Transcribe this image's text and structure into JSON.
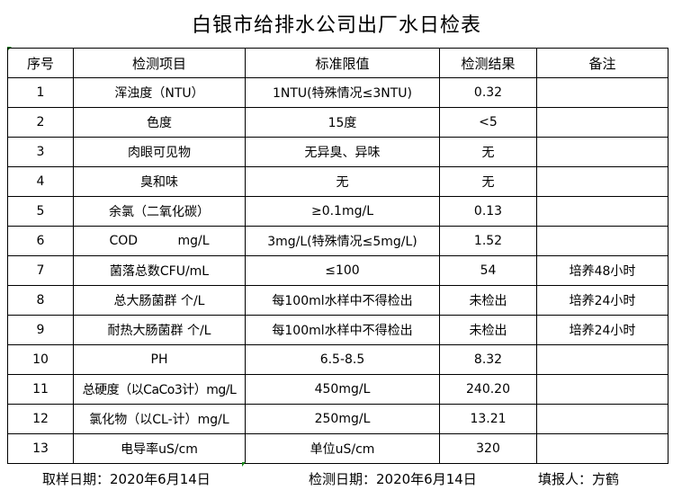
{
  "title": "白银市给排水公司出厂水日检表",
  "headers": [
    "序号",
    "检测项目",
    "标准限值",
    "检测结果",
    "备注"
  ],
  "rows": [
    [
      "1",
      "浑浊度（NTU）",
      "1NTU(特殊情况≤3NTU)",
      "0.32",
      ""
    ],
    [
      "2",
      "色度",
      "15度",
      "<5",
      ""
    ],
    [
      "3",
      "肉眼可见物",
      "无异臭、异味",
      "无",
      ""
    ],
    [
      "4",
      "臭和味",
      "无",
      "无",
      ""
    ],
    [
      "5",
      "余氯（二氧化碳）",
      "≥0.1mg/L",
      "0.13",
      ""
    ],
    [
      "6",
      "COD          mg/L",
      "3mg/L(特殊情况≤5mg/L)",
      "1.52",
      ""
    ],
    [
      "7",
      "菌落总数CFU/mL",
      "≤100",
      "54",
      "培养48小时"
    ],
    [
      "8",
      "总大肠菌群 个/L",
      "每100ml水样中不得检出",
      "未检出",
      "培养24小时"
    ],
    [
      "9",
      "耐热大肠菌群 个/L",
      "每100ml水样中不得检出",
      "未检出",
      "培养24小时"
    ],
    [
      "10",
      "PH",
      "6.5-8.5",
      "8.32",
      ""
    ],
    [
      "11",
      "总硬度（以CaCo3计）mg/L",
      "450mg/L",
      "240.20",
      ""
    ],
    [
      "12",
      "氯化物（以CL-计）mg/L",
      "250mg/L",
      "13.21",
      ""
    ],
    [
      "13",
      "电导率uS/cm",
      "单位uS/cm",
      "320",
      ""
    ]
  ],
  "footer": {
    "sample_date": "取样日期：2020年6月14日",
    "test_date": "检测日期：2020年6月14日",
    "reporter": "填报人：方鹤"
  }
}
